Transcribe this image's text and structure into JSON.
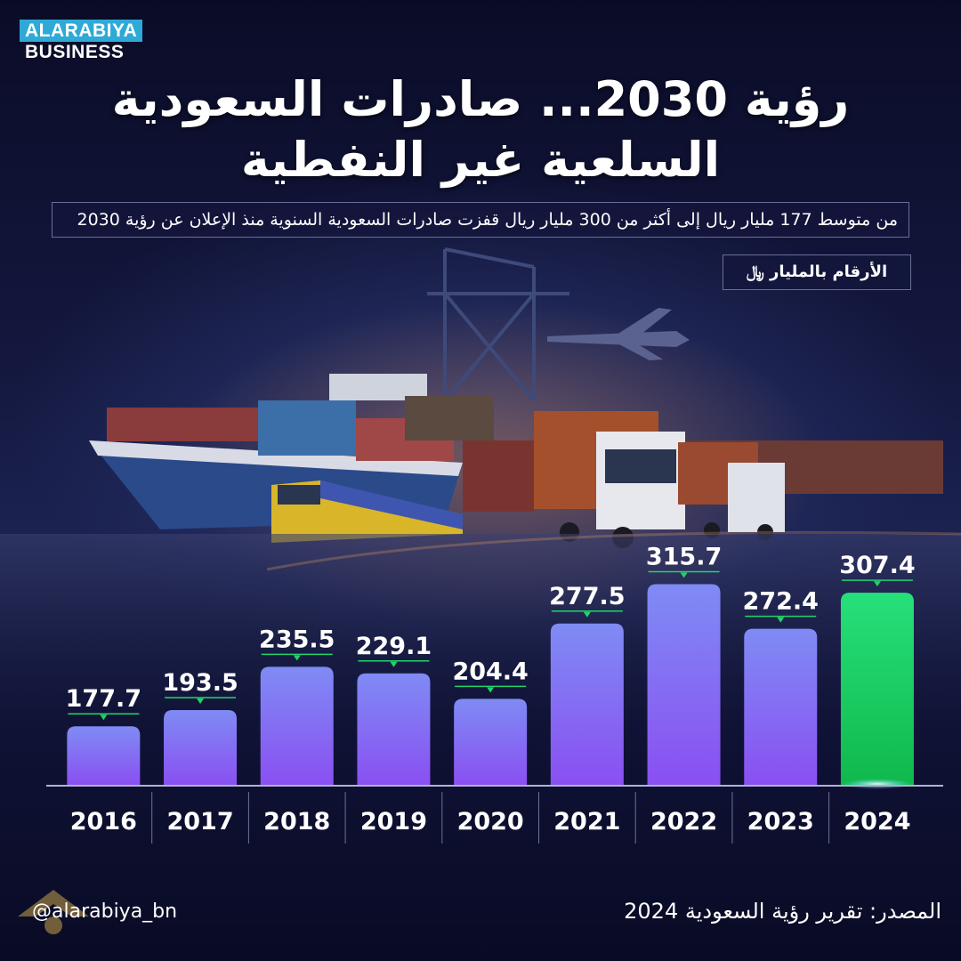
{
  "brand": {
    "logo_top": "ALARABIYA",
    "logo_bottom": "BUSINESS"
  },
  "header": {
    "title_line1": "رؤية 2030... صادرات السعودية",
    "title_line2": "السلعية غير النفطية",
    "subtitle": "من متوسط 177 مليار ريال إلى أكثر من 300 مليار ريال قفزت صادرات السعودية السنوية منذ الإعلان عن رؤية 2030",
    "unit_badge": "الأرقام بالمليار ﷼"
  },
  "footer": {
    "handle": "@alarabiya_bn",
    "source": "المصدر: تقرير رؤية السعودية 2024"
  },
  "colors": {
    "bar_top": "#7f8bf4",
    "bar_bottom": "#8a4ff2",
    "highlight_top": "#27e07a",
    "highlight_bottom": "#0fb84c",
    "label_line": "#22d36b"
  },
  "chart_data": {
    "type": "bar",
    "categories": [
      "2016",
      "2017",
      "2018",
      "2019",
      "2020",
      "2021",
      "2022",
      "2023",
      "2024"
    ],
    "values": [
      177.7,
      193.5,
      235.5,
      229.1,
      204.4,
      277.5,
      315.7,
      272.4,
      307.4
    ],
    "value_labels": [
      "177.7",
      "193.5",
      "235.5",
      "229.1",
      "204.4",
      "277.5",
      "315.7",
      "272.4",
      "307.4"
    ],
    "highlight_category": "2024",
    "title": "رؤية 2030... صادرات السعودية السلعية غير النفطية",
    "xlabel": "",
    "ylabel": "",
    "ylim": [
      120,
      330
    ],
    "grid": false,
    "legend": "none"
  }
}
